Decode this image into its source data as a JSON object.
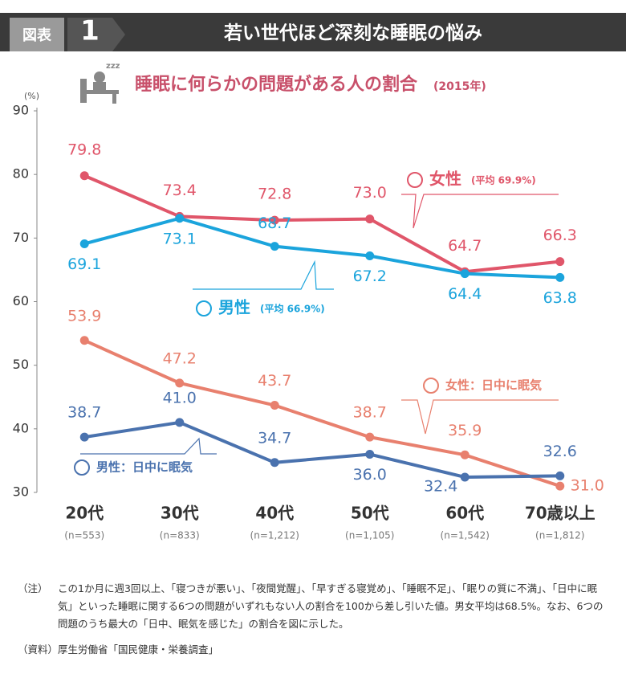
{
  "header": {
    "tag": "図表",
    "number": "1",
    "title": "若い世代ほど深刻な睡眠の悩み"
  },
  "chart_data": {
    "type": "line",
    "title": "睡眠に何らかの問題がある人の割合",
    "subtitle": "(2015年)",
    "y_unit": "(%)",
    "categories": [
      "20代",
      "30代",
      "40代",
      "50代",
      "60代",
      "70歳以上"
    ],
    "category_notes": [
      "(n=553)",
      "(n=833)",
      "(n=1,212)",
      "(n=1,105)",
      "(n=1,542)",
      "(n=1,812)"
    ],
    "ylim": [
      30,
      90
    ],
    "yticks": [
      30,
      40,
      50,
      60,
      70,
      80,
      90
    ],
    "series": [
      {
        "name": "女性",
        "average_label": "(平均 69.9%)",
        "color": "#e0566a",
        "values": [
          79.8,
          73.4,
          72.8,
          73.0,
          64.7,
          66.3
        ],
        "value_labels": [
          "79.8",
          "73.4",
          "72.8",
          "73.0",
          "64.7",
          "66.3"
        ]
      },
      {
        "name": "男性",
        "average_label": "(平均 66.9%)",
        "color": "#1ba4dc",
        "values": [
          69.1,
          73.1,
          68.7,
          67.2,
          64.4,
          63.8
        ],
        "value_labels": [
          "69.1",
          "73.1",
          "68.7",
          "67.2",
          "64.4",
          "63.8"
        ]
      },
      {
        "name": "女性：日中に眠気",
        "color": "#e8806e",
        "values": [
          53.9,
          47.2,
          43.7,
          38.7,
          35.9,
          31.0
        ],
        "value_labels": [
          "53.9",
          "47.2",
          "43.7",
          "38.7",
          "35.9",
          "31.0"
        ]
      },
      {
        "name": "男性：日中に眠気",
        "color": "#4a72ae",
        "values": [
          38.7,
          41.0,
          34.7,
          36.0,
          32.4,
          32.6
        ],
        "value_labels": [
          "38.7",
          "41.0",
          "34.7",
          "36.0",
          "32.4",
          "32.6"
        ]
      }
    ]
  },
  "notes": {
    "note_label": "（注）",
    "note_text": "この1か月に週3回以上、「寝つきが悪い」、「夜間覚醒」、「早すぎる寝覚め」、「睡眠不足」、「眠りの質に不満」、「日中に眠気」といった睡眠に関する6つの問題がいずれもない人の割合を100から差し引いた値。男女平均は68.5%。なお、6つの問題のうち最大の「日中、眠気を感じた」の割合を図に示した。",
    "source_label": "（資料）",
    "source_text": "厚生労働省「国民健康・栄養調査」"
  }
}
